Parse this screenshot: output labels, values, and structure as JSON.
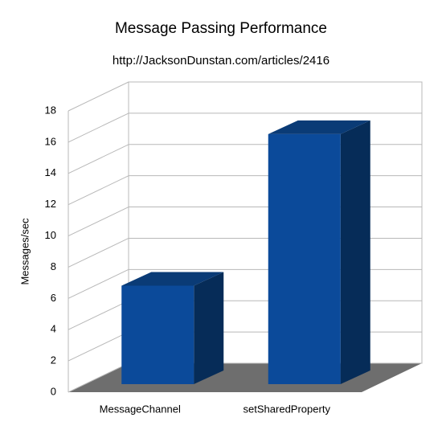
{
  "chart_data": {
    "type": "bar3d",
    "title": "Message Passing Performance",
    "subtitle": "http://JacksonDunstan.com/articles/2416",
    "y_label": "Messages/sec",
    "categories": [
      "MessageChannel",
      "setSharedProperty"
    ],
    "values": [
      6.3,
      16
    ],
    "color": "#0b4a9a",
    "ylim": [
      0,
      18
    ],
    "yticks": [
      0,
      2,
      4,
      6,
      8,
      10,
      12,
      14,
      16,
      18
    ],
    "grid": true
  }
}
